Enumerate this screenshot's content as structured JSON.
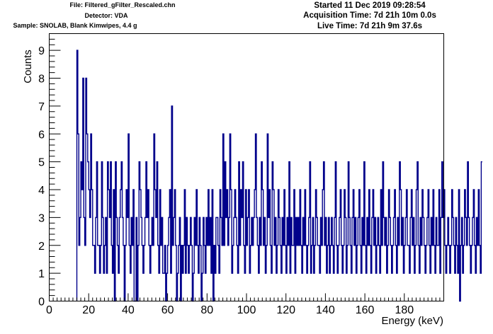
{
  "header": {
    "file": "File: Filtered_gFilter_Rescaled.chn",
    "detector": "Detector: VDA",
    "sample": "Sample: SNOLAB, Blank Kimwipes, 4.4 g",
    "started": "Started 11 Dec 2019 09:28:54",
    "acquisition": "Acquisition Time: 7d 21h 10m 0.0s",
    "live": "Live Time: 7d 21h 9m 37.6s"
  },
  "colors": {
    "series": "#00008b",
    "axis": "#000000",
    "background": "#ffffff"
  },
  "chart_data": {
    "type": "histogram",
    "xlabel": "Energy (keV)",
    "ylabel": "Counts",
    "xlim": [
      0,
      200
    ],
    "ylim": [
      0,
      9.6
    ],
    "xticks": [
      0,
      20,
      40,
      60,
      80,
      100,
      120,
      140,
      160,
      180
    ],
    "yticks": [
      0,
      1,
      2,
      3,
      4,
      5,
      6,
      7,
      8,
      9
    ],
    "grid": false,
    "bin_width_keV": 0.5,
    "bin_start_keV": 14,
    "series": [
      {
        "values": [
          9,
          6,
          2,
          3,
          5,
          4,
          8,
          3,
          2,
          8,
          6,
          5,
          4,
          3,
          6,
          4,
          2,
          2,
          1,
          3,
          5,
          2,
          2,
          1,
          2,
          5,
          3,
          1,
          2,
          3,
          1,
          5,
          4,
          3,
          5,
          2,
          1,
          4,
          0,
          5,
          3,
          2,
          1,
          3,
          4,
          5,
          3,
          2,
          0,
          2,
          4,
          3,
          6,
          2,
          1,
          3,
          2,
          4,
          0,
          0,
          3,
          0,
          2,
          5,
          4,
          3,
          2,
          1,
          2,
          3,
          5,
          3,
          4,
          2,
          1,
          2,
          3,
          2,
          6,
          4,
          3,
          5,
          2,
          1,
          4,
          2,
          3,
          1,
          1,
          2,
          0,
          1,
          2,
          3,
          4,
          1,
          7,
          2,
          3,
          4,
          2,
          0,
          1,
          2,
          3,
          0,
          2,
          1,
          2,
          4,
          1,
          3,
          2,
          1,
          2,
          3,
          2,
          0,
          1,
          3,
          2,
          4,
          2,
          1,
          3,
          2,
          0,
          1,
          3,
          2,
          1,
          3,
          2,
          4,
          2,
          3,
          1,
          4,
          0,
          2,
          1,
          3,
          3,
          2,
          1,
          4,
          3,
          2,
          6,
          2,
          5,
          3,
          4,
          2,
          3,
          6,
          4,
          1,
          2,
          3,
          4,
          3,
          2,
          1,
          5,
          2,
          4,
          3,
          5,
          2,
          1,
          4,
          2,
          3,
          4,
          1,
          2,
          3,
          2,
          3,
          4,
          6,
          3,
          2,
          1,
          3,
          2,
          5,
          4,
          2,
          3,
          1,
          2,
          6,
          3,
          4,
          2,
          1,
          5,
          4,
          2,
          3,
          1,
          2,
          4,
          3,
          2,
          1,
          3,
          2,
          4,
          2,
          1,
          3,
          2,
          5,
          1,
          3,
          2,
          2,
          4,
          1,
          3,
          2,
          3,
          2,
          4,
          2,
          1,
          3,
          2,
          4,
          2,
          1,
          2,
          3,
          5,
          1,
          2,
          3,
          1,
          2,
          4,
          3,
          2,
          2,
          1,
          3,
          2,
          4,
          5,
          2,
          3,
          1,
          2,
          3,
          1,
          2,
          3,
          2,
          1,
          3,
          5,
          2,
          1,
          2,
          3,
          4,
          2,
          1,
          2,
          4,
          3,
          1,
          2,
          5,
          3,
          2,
          1,
          3,
          4,
          2,
          3,
          1,
          2,
          3,
          4,
          2,
          1,
          3,
          2,
          5,
          2,
          1,
          3,
          2,
          4,
          2,
          1,
          3,
          4,
          2,
          3,
          1,
          2,
          3,
          2,
          1,
          4,
          2,
          5,
          3,
          2,
          3,
          1,
          2,
          4,
          3,
          2,
          1,
          2,
          3,
          4,
          2,
          1,
          3,
          2,
          5,
          4,
          2,
          3,
          1,
          2,
          3,
          4,
          2,
          2,
          1,
          3,
          4,
          2,
          3,
          1,
          2,
          4,
          5,
          2,
          1,
          3,
          2,
          4,
          3,
          2,
          1,
          2,
          3,
          4,
          2,
          1,
          3,
          2,
          4,
          2,
          1,
          3,
          2,
          2,
          4,
          1,
          3,
          5,
          3,
          4,
          2,
          1,
          2,
          3,
          2,
          1,
          2,
          4,
          3,
          2,
          1,
          3,
          2,
          1,
          4,
          0,
          2,
          3,
          1,
          2,
          4,
          3,
          2,
          5,
          3,
          2,
          1,
          2,
          3,
          4,
          2,
          1,
          3,
          2,
          4,
          2,
          1,
          5
        ]
      }
    ]
  }
}
